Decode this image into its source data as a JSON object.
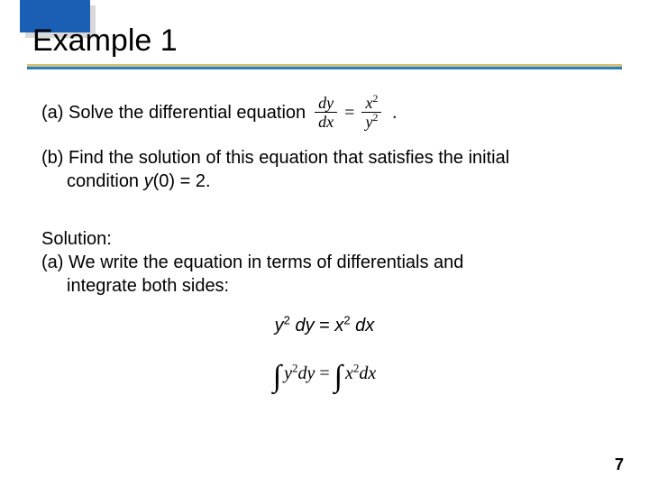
{
  "header": {
    "title": "Example 1",
    "accent_blue": "#1a5fb4",
    "rule_blue": "#2a7fbf",
    "rule_gold": "#d4c27a"
  },
  "parts": {
    "a_text": "(a) Solve the differential equation",
    "eq1": {
      "num_l": "dy",
      "den_l": "dx",
      "eq": "=",
      "num_r": "x",
      "den_r": "y",
      "sup": "2",
      "period": "."
    },
    "b_line1": "(b) Find the solution of this equation that satisfies the initial",
    "b_line2_pre": "condition ",
    "b_y": "y",
    "b_line2_post": "(0) = 2."
  },
  "solution": {
    "label": "Solution:",
    "a1": "(a) We write the equation in terms of differentials and",
    "a2": "integrate both sides:",
    "eq2": {
      "y": "y",
      "sup": "2",
      "dy": " dy",
      "eq": " = ",
      "x": "x",
      "dx": " dx"
    },
    "eq3": {
      "int": "∫",
      "y": "y",
      "sup": "2",
      "dy": "dy",
      "eq": " = ",
      "x": "x",
      "dx": "dx"
    }
  },
  "page": "7"
}
